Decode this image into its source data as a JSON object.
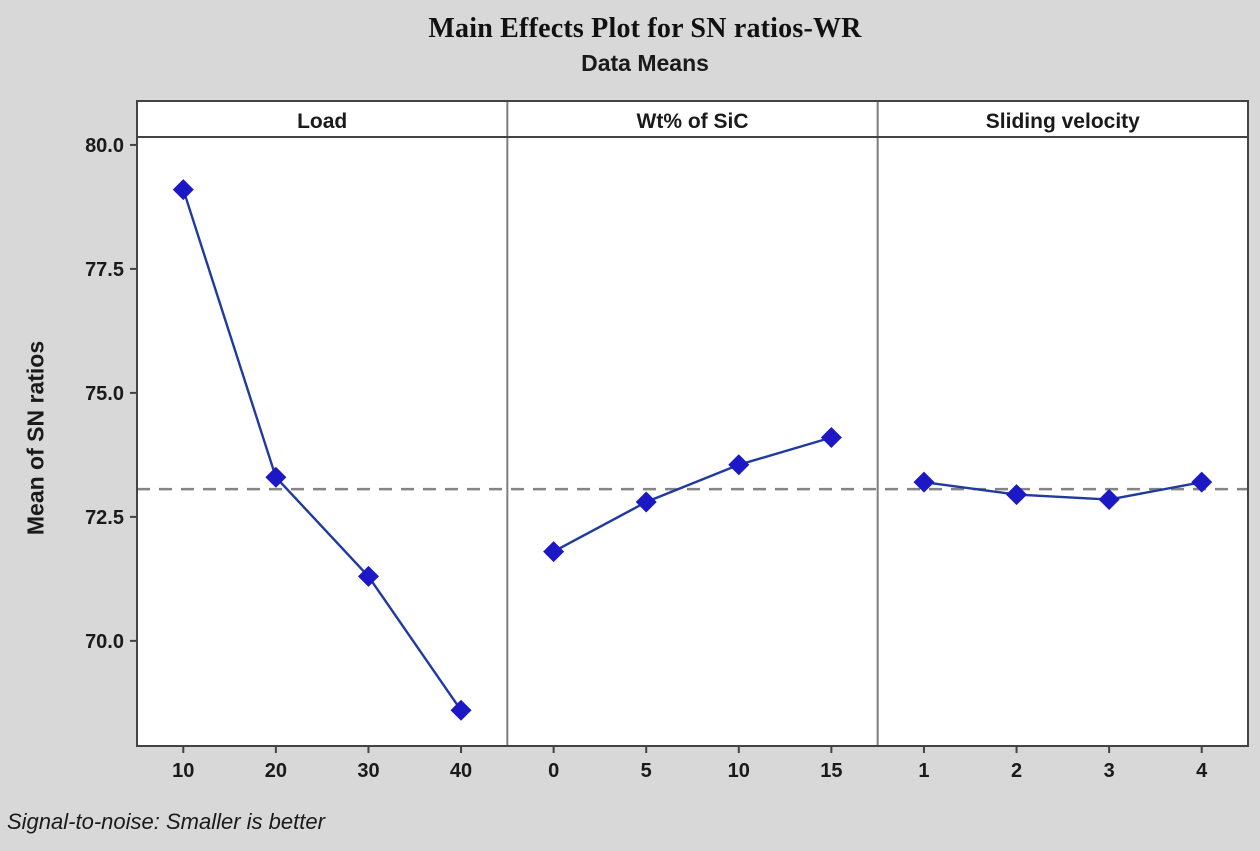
{
  "colors": {
    "background": "#d8d8d8",
    "plot_background": "#ffffff",
    "marker": "#1c18c6",
    "series_line": "#1f3aa0",
    "reference_line": "#848484",
    "border_dark": "#434343",
    "panel_divider": "#7d7d7d",
    "text": "#1a1a1a"
  },
  "chart_data": {
    "type": "line",
    "title": "Main Effects Plot for SN ratios-WR",
    "subtitle": "Data Means",
    "ylabel": "Mean of SN ratios",
    "footnote": "Signal-to-noise: Smaller is better",
    "ylim": [
      67.88,
      80.16
    ],
    "yticks": [
      80.0,
      77.5,
      75.0,
      72.5,
      70.0
    ],
    "ytick_labels": [
      "80.0",
      "77.5",
      "75.0",
      "72.5",
      "70.0"
    ],
    "grid": false,
    "legend_position": "none",
    "marker_shape": "diamond",
    "reference_line_mean": 73.06,
    "reference_line_style": "dashed",
    "panels": [
      {
        "label": "Load",
        "x_labels": [
          "10",
          "20",
          "30",
          "40"
        ],
        "values": [
          79.1,
          73.3,
          71.3,
          68.6
        ]
      },
      {
        "label": "Wt% of SiC",
        "x_labels": [
          "0",
          "5",
          "10",
          "15"
        ],
        "values": [
          71.8,
          72.8,
          73.55,
          74.1
        ]
      },
      {
        "label": "Sliding velocity",
        "x_labels": [
          "1",
          "2",
          "3",
          "4"
        ],
        "values": [
          73.2,
          72.95,
          72.85,
          73.2
        ]
      }
    ]
  }
}
